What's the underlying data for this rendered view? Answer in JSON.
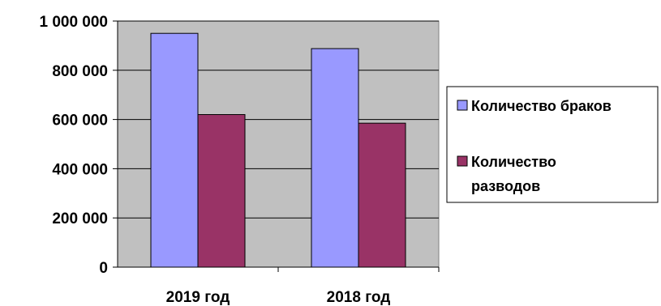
{
  "chart_data": {
    "type": "bar",
    "categories": [
      "2019 год",
      "2018 год"
    ],
    "series": [
      {
        "name": "Количество браков",
        "color": "#9999ff",
        "values": [
          950000,
          888000
        ]
      },
      {
        "name": "Количество разводов",
        "legend_lines": [
          "Количество",
          "разводов"
        ],
        "color": "#993366",
        "values": [
          620000,
          585000
        ]
      }
    ],
    "ylim": [
      0,
      1000000
    ],
    "y_ticks": [
      0,
      200000,
      400000,
      600000,
      800000,
      1000000
    ],
    "y_tick_labels": [
      "0",
      "200 000",
      "400 000",
      "600 000",
      "800 000",
      "1 000 000"
    ],
    "plot_background": "#c0c0c0",
    "grid": true,
    "legend_position": "right",
    "title": "",
    "xlabel": "",
    "ylabel": ""
  }
}
